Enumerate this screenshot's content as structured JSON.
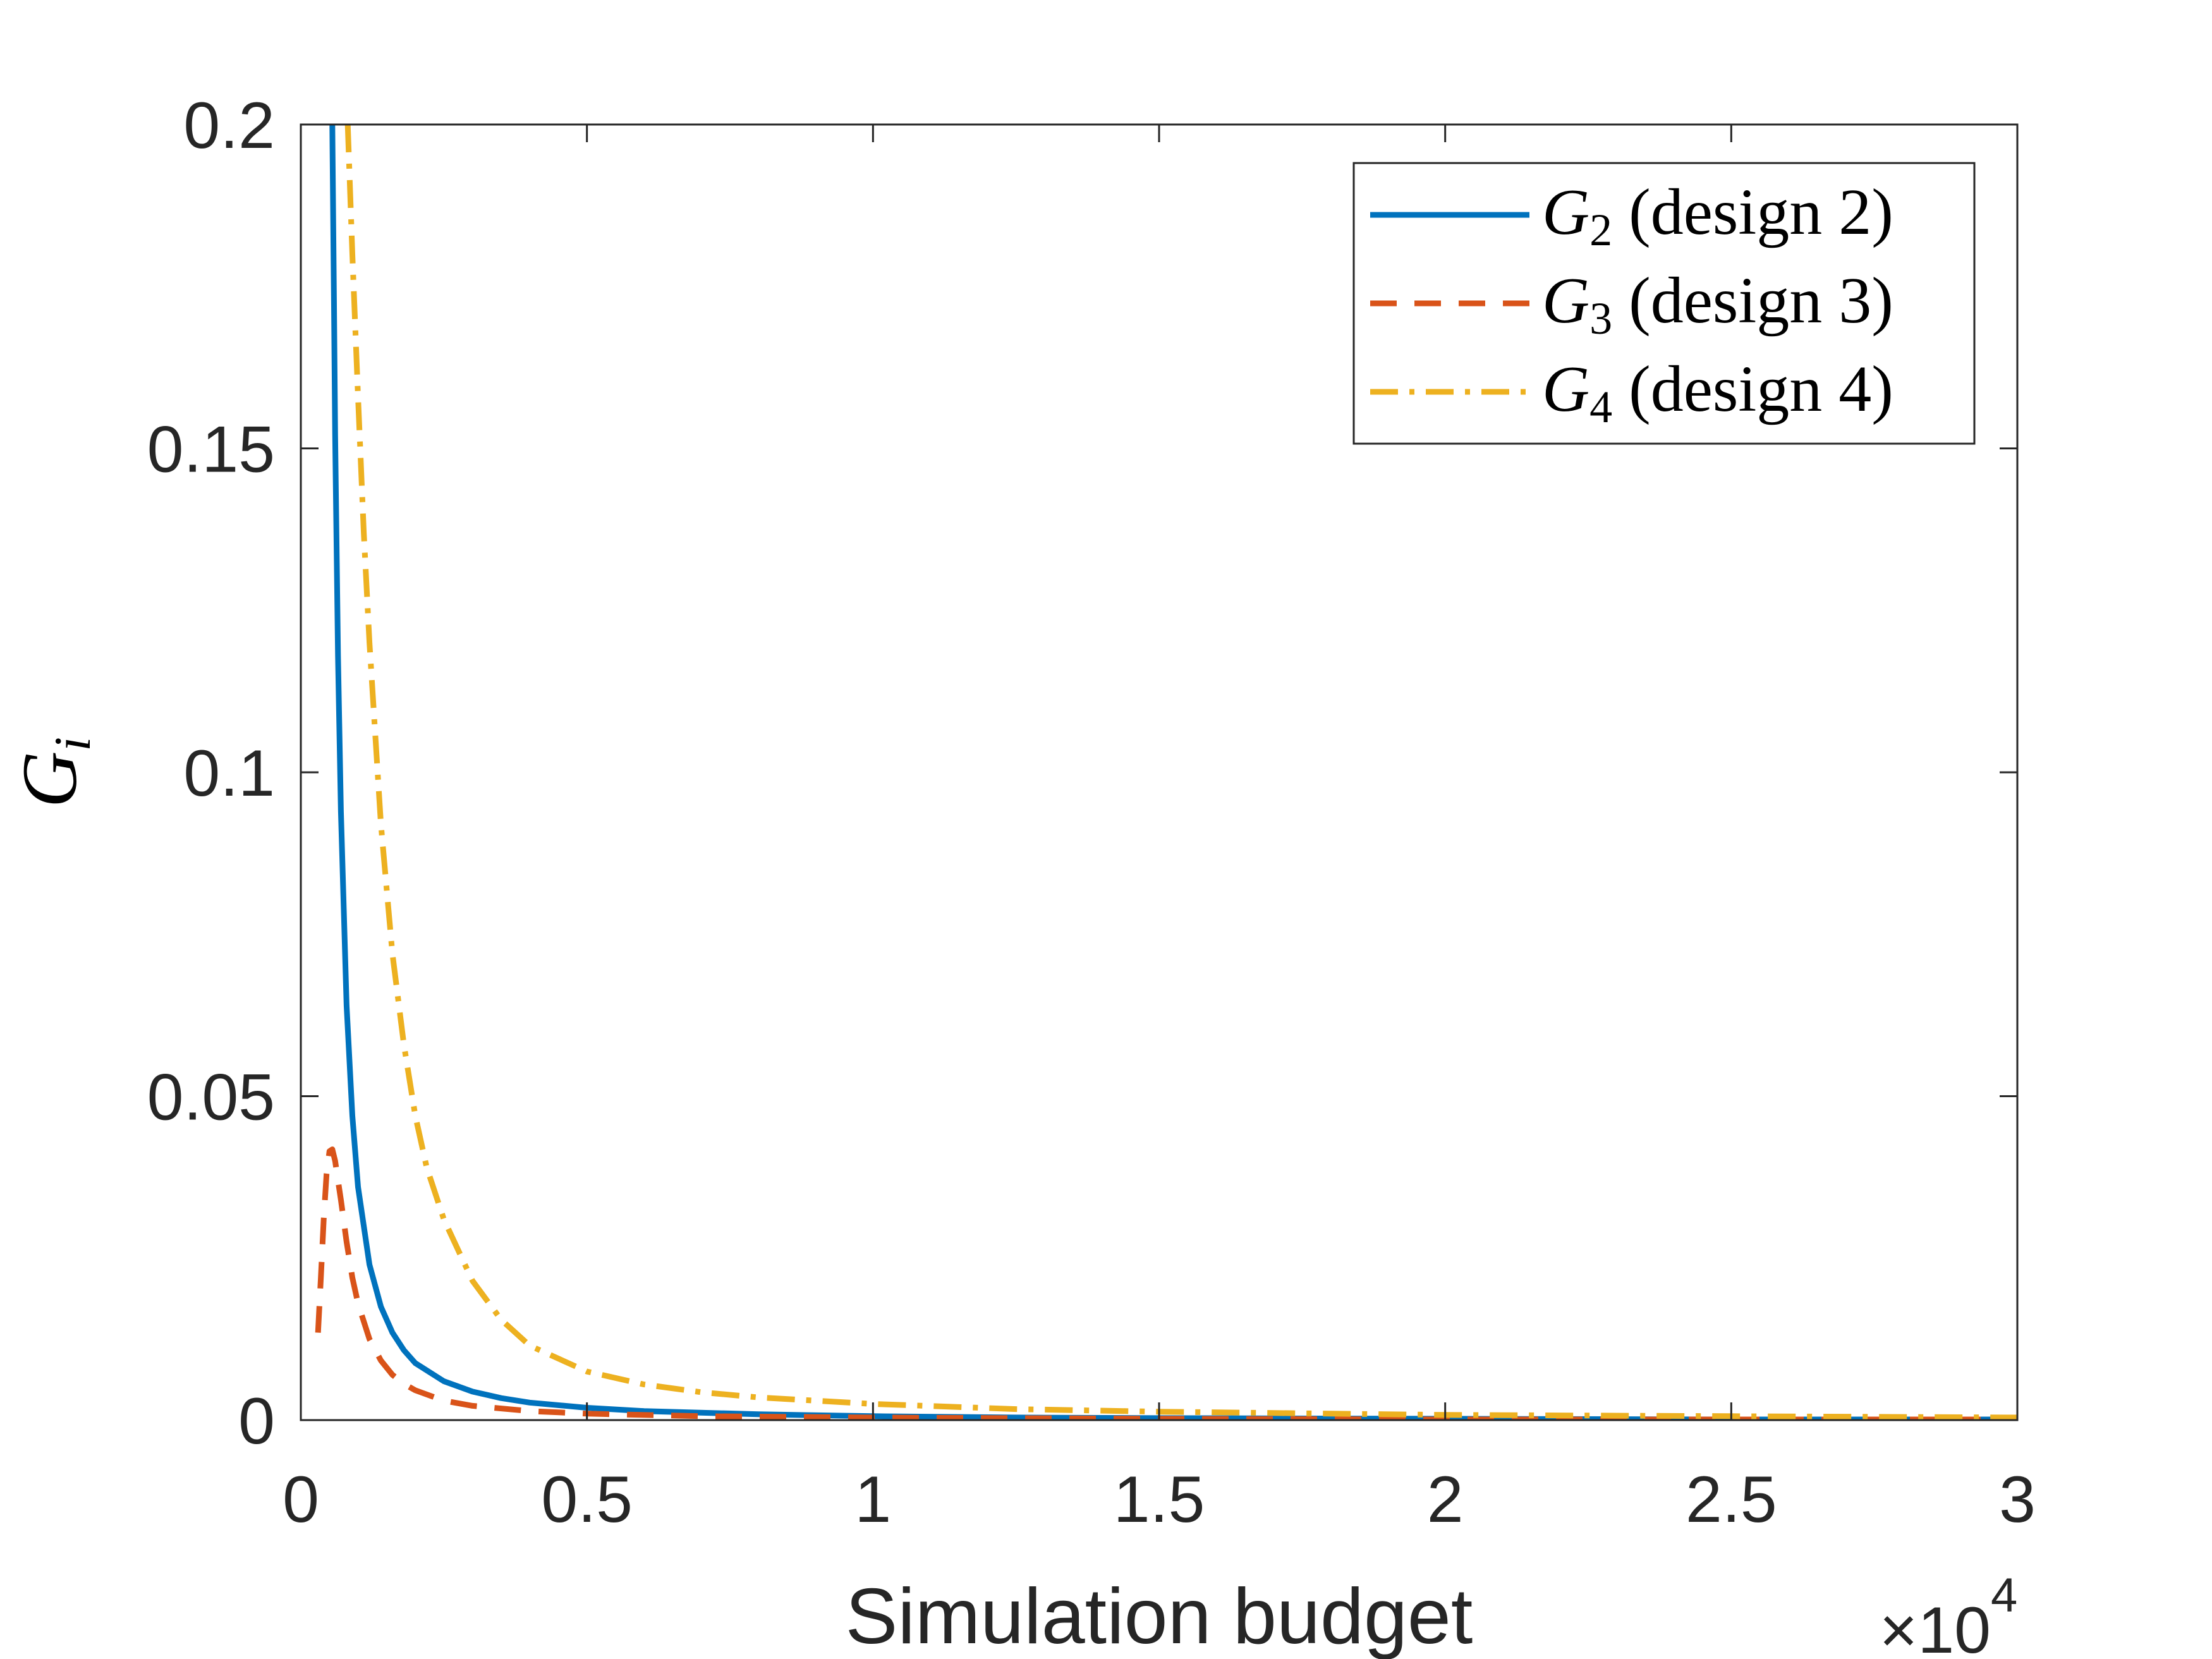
{
  "chart_data": {
    "type": "line",
    "title": "",
    "xlabel": "Simulation budget",
    "ylabel": {
      "base": "G",
      "subscript": "i"
    },
    "x_multiplier": {
      "prefix": "×10",
      "exponent": "4"
    },
    "xlim": [
      0,
      3
    ],
    "ylim": [
      0,
      0.2
    ],
    "xticks": [
      0,
      0.5,
      1,
      1.5,
      2,
      2.5,
      3
    ],
    "xtick_labels": [
      "0",
      "0.5",
      "1",
      "1.5",
      "2",
      "2.5",
      "3"
    ],
    "yticks": [
      0,
      0.05,
      0.1,
      0.15,
      0.2
    ],
    "ytick_labels": [
      "0",
      "0.05",
      "0.1",
      "0.15",
      "0.2"
    ],
    "grid": false,
    "legend_position": "top-right",
    "series": [
      {
        "name": "G_2 (design 2)",
        "legend_base": "G",
        "legend_sub": "2",
        "legend_rest": " (design 2)",
        "color": "#0072BD",
        "style": "solid",
        "x": [
          0.055,
          0.058,
          0.06,
          0.065,
          0.07,
          0.08,
          0.09,
          0.1,
          0.12,
          0.14,
          0.16,
          0.18,
          0.2,
          0.25,
          0.3,
          0.35,
          0.4,
          0.5,
          0.6,
          0.8,
          1.0,
          1.25,
          1.5,
          2.0,
          2.5,
          3.0
        ],
        "y": [
          0.2,
          0.172,
          0.152,
          0.118,
          0.094,
          0.064,
          0.047,
          0.036,
          0.024,
          0.0175,
          0.0135,
          0.0108,
          0.0088,
          0.006,
          0.0044,
          0.0034,
          0.0027,
          0.0019,
          0.0014,
          0.0009,
          0.0006,
          0.0004,
          0.0003,
          0.0002,
          0.0001,
          0.0001
        ]
      },
      {
        "name": "G_3 (design 3)",
        "legend_base": "G",
        "legend_sub": "3",
        "legend_rest": " (design 3)",
        "color": "#D95319",
        "style": "dashed",
        "x": [
          0.03,
          0.035,
          0.04,
          0.045,
          0.05,
          0.055,
          0.06,
          0.065,
          0.07,
          0.08,
          0.09,
          0.1,
          0.12,
          0.14,
          0.16,
          0.18,
          0.2,
          0.25,
          0.3,
          0.4,
          0.5,
          0.7,
          1.0,
          1.5,
          2.0,
          2.5,
          3.0
        ],
        "y": [
          0.0135,
          0.022,
          0.031,
          0.038,
          0.0415,
          0.0418,
          0.04,
          0.037,
          0.034,
          0.0275,
          0.022,
          0.018,
          0.0125,
          0.0092,
          0.007,
          0.0056,
          0.0046,
          0.003,
          0.0022,
          0.0014,
          0.001,
          0.0006,
          0.0004,
          0.0002,
          0.0001,
          0.0001,
          0.0001
        ]
      },
      {
        "name": "G_4 (design 4)",
        "legend_base": "G",
        "legend_sub": "4",
        "legend_rest": " (design 4)",
        "color": "#EDB120",
        "style": "dashdot",
        "x": [
          0.082,
          0.09,
          0.1,
          0.11,
          0.12,
          0.14,
          0.16,
          0.18,
          0.2,
          0.22,
          0.25,
          0.3,
          0.35,
          0.4,
          0.5,
          0.6,
          0.7,
          0.8,
          1.0,
          1.25,
          1.5,
          2.0,
          2.5,
          3.0
        ],
        "y": [
          0.2,
          0.18,
          0.158,
          0.137,
          0.12,
          0.092,
          0.072,
          0.058,
          0.047,
          0.039,
          0.031,
          0.0215,
          0.0155,
          0.0115,
          0.0075,
          0.0055,
          0.0043,
          0.0035,
          0.0025,
          0.0017,
          0.0013,
          0.0008,
          0.0006,
          0.0004
        ]
      }
    ]
  }
}
